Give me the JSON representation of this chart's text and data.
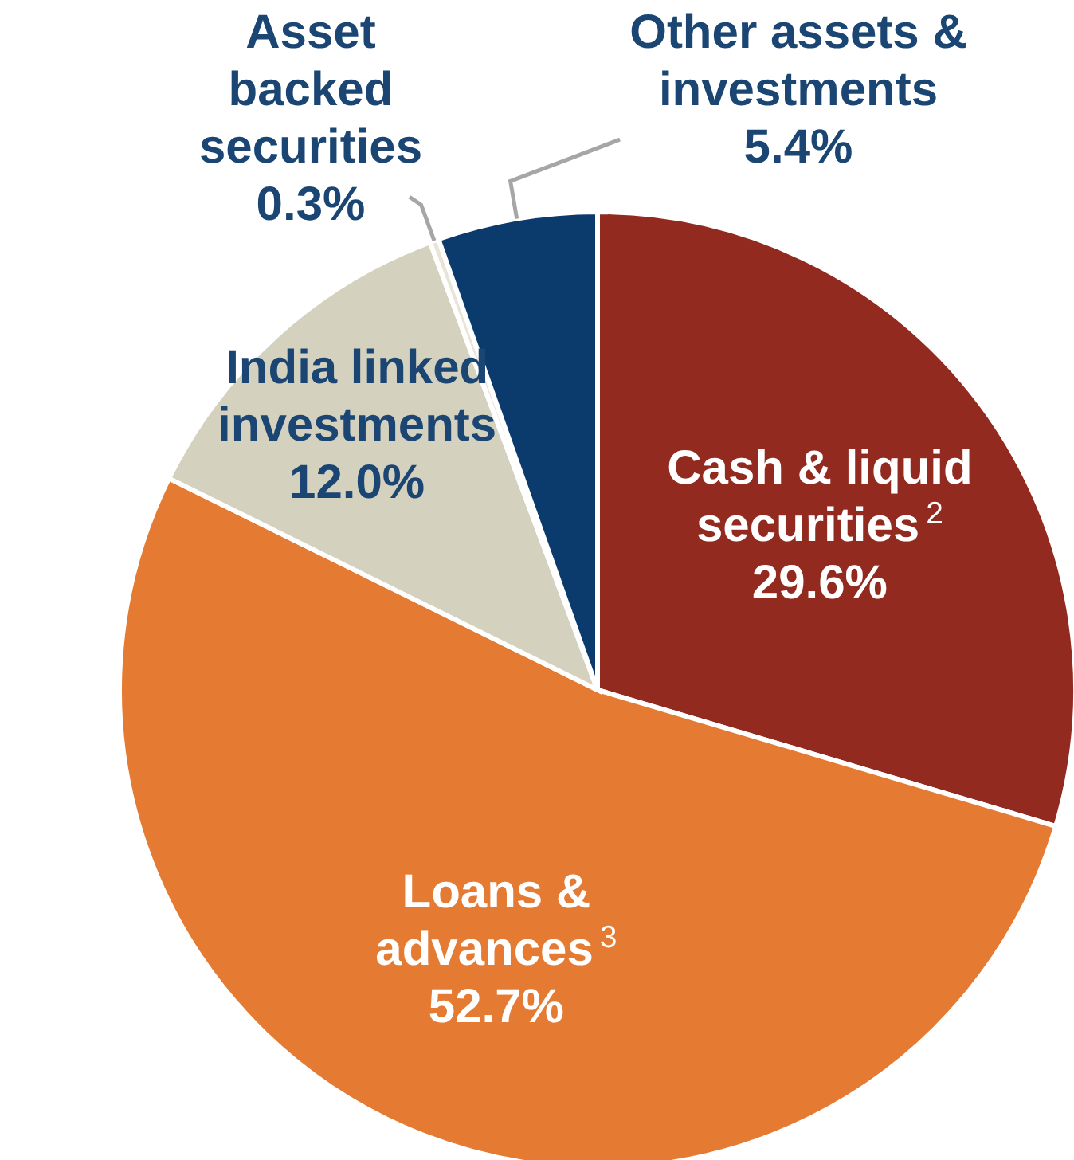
{
  "chart_data": {
    "type": "pie",
    "categories": [
      "Cash & liquid securities$^{2}$",
      "Loans & advances$^{3}$",
      "India linked investments",
      "Asset backed securities",
      "Other assets & investments"
    ],
    "values": [
      29.6,
      52.7,
      12.0,
      0.3,
      5.4
    ],
    "colors": [
      "#922a1f",
      "#e57a32",
      "#d5d1bf",
      "#e8e4d8",
      "#0b3b6c"
    ],
    "value_labels": [
      "29.6%",
      "52.7%",
      "12.0%",
      "0.3%",
      "5.4%"
    ]
  }
}
